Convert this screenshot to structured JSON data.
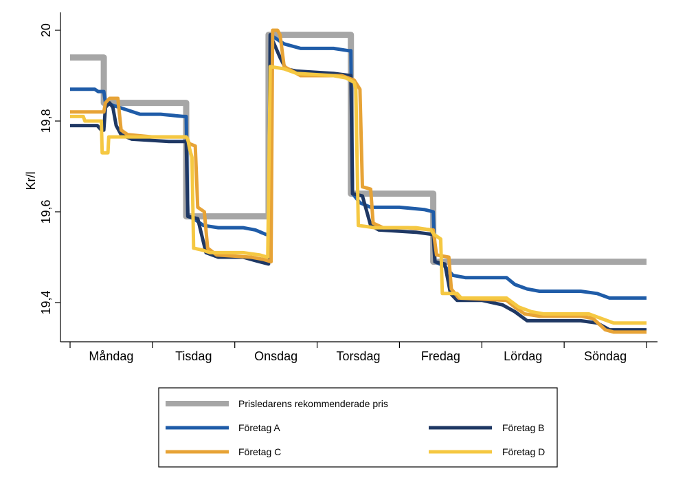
{
  "chart_data": {
    "type": "line",
    "title": "",
    "xlabel": "",
    "ylabel": "Kr/l",
    "ylim": [
      19.33,
      20.03
    ],
    "yticks": [
      19.4,
      19.6,
      19.8,
      20
    ],
    "ytick_labels": [
      "19,4",
      "19,6",
      "19,8",
      "20"
    ],
    "x_range": [
      0,
      7
    ],
    "categories": [
      "Måndag",
      "Tisdag",
      "Onsdag",
      "Torsdag",
      "Fredag",
      "Lördag",
      "Söndag"
    ],
    "grid": false,
    "legend_position": "bottom",
    "series": [
      {
        "name": "Prisledarens rekommenderade pris",
        "color": "#a6a6a6",
        "points": [
          [
            0,
            19.94
          ],
          [
            0.41,
            19.94
          ],
          [
            0.41,
            19.84
          ],
          [
            1.41,
            19.84
          ],
          [
            1.41,
            19.59
          ],
          [
            2.41,
            19.59
          ],
          [
            2.41,
            19.99
          ],
          [
            3.41,
            19.99
          ],
          [
            3.41,
            19.64
          ],
          [
            4.41,
            19.64
          ],
          [
            4.41,
            19.49
          ],
          [
            7,
            19.49
          ]
        ]
      },
      {
        "name": "Företag A",
        "color": "#1f5ca8",
        "points": [
          [
            0,
            19.87
          ],
          [
            0.3,
            19.87
          ],
          [
            0.34,
            19.865
          ],
          [
            0.41,
            19.865
          ],
          [
            0.43,
            19.84
          ],
          [
            0.6,
            19.83
          ],
          [
            0.85,
            19.815
          ],
          [
            1.1,
            19.815
          ],
          [
            1.38,
            19.81
          ],
          [
            1.41,
            19.81
          ],
          [
            1.43,
            19.59
          ],
          [
            1.5,
            19.585
          ],
          [
            1.62,
            19.57
          ],
          [
            1.8,
            19.565
          ],
          [
            2.1,
            19.565
          ],
          [
            2.25,
            19.56
          ],
          [
            2.38,
            19.55
          ],
          [
            2.41,
            19.55
          ],
          [
            2.43,
            19.99
          ],
          [
            2.6,
            19.97
          ],
          [
            2.8,
            19.96
          ],
          [
            3.2,
            19.96
          ],
          [
            3.38,
            19.955
          ],
          [
            3.41,
            19.955
          ],
          [
            3.43,
            19.64
          ],
          [
            3.52,
            19.62
          ],
          [
            3.65,
            19.61
          ],
          [
            4.0,
            19.61
          ],
          [
            4.3,
            19.605
          ],
          [
            4.41,
            19.6
          ],
          [
            4.43,
            19.49
          ],
          [
            4.55,
            19.48
          ],
          [
            4.65,
            19.46
          ],
          [
            4.8,
            19.455
          ],
          [
            5.3,
            19.455
          ],
          [
            5.4,
            19.44
          ],
          [
            5.55,
            19.43
          ],
          [
            5.7,
            19.425
          ],
          [
            6.2,
            19.425
          ],
          [
            6.4,
            19.42
          ],
          [
            6.55,
            19.41
          ],
          [
            7,
            19.41
          ]
        ]
      },
      {
        "name": "Företag B",
        "color": "#1f3864",
        "points": [
          [
            0,
            19.79
          ],
          [
            0.33,
            19.79
          ],
          [
            0.38,
            19.78
          ],
          [
            0.41,
            19.78
          ],
          [
            0.43,
            19.83
          ],
          [
            0.48,
            19.84
          ],
          [
            0.52,
            19.83
          ],
          [
            0.56,
            19.79
          ],
          [
            0.62,
            19.77
          ],
          [
            0.75,
            19.76
          ],
          [
            1.2,
            19.755
          ],
          [
            1.41,
            19.755
          ],
          [
            1.43,
            19.59
          ],
          [
            1.55,
            19.585
          ],
          [
            1.65,
            19.51
          ],
          [
            1.8,
            19.5
          ],
          [
            2.1,
            19.5
          ],
          [
            2.3,
            19.49
          ],
          [
            2.41,
            19.485
          ],
          [
            2.43,
            19.99
          ],
          [
            2.55,
            19.94
          ],
          [
            2.62,
            19.915
          ],
          [
            2.75,
            19.91
          ],
          [
            3.2,
            19.905
          ],
          [
            3.41,
            19.9
          ],
          [
            3.43,
            19.64
          ],
          [
            3.55,
            19.635
          ],
          [
            3.65,
            19.57
          ],
          [
            3.75,
            19.56
          ],
          [
            4.2,
            19.555
          ],
          [
            4.41,
            19.55
          ],
          [
            4.43,
            19.49
          ],
          [
            4.55,
            19.485
          ],
          [
            4.62,
            19.42
          ],
          [
            4.7,
            19.405
          ],
          [
            5.0,
            19.405
          ],
          [
            5.25,
            19.395
          ],
          [
            5.4,
            19.38
          ],
          [
            5.55,
            19.36
          ],
          [
            6.2,
            19.36
          ],
          [
            6.4,
            19.355
          ],
          [
            6.55,
            19.34
          ],
          [
            7,
            19.34
          ]
        ]
      },
      {
        "name": "Företag C",
        "color": "#e7a336",
        "points": [
          [
            0,
            19.82
          ],
          [
            0.41,
            19.82
          ],
          [
            0.43,
            19.84
          ],
          [
            0.48,
            19.85
          ],
          [
            0.58,
            19.85
          ],
          [
            0.62,
            19.78
          ],
          [
            0.7,
            19.77
          ],
          [
            1.0,
            19.765
          ],
          [
            1.41,
            19.765
          ],
          [
            1.45,
            19.75
          ],
          [
            1.52,
            19.745
          ],
          [
            1.55,
            19.61
          ],
          [
            1.63,
            19.6
          ],
          [
            1.67,
            19.52
          ],
          [
            1.78,
            19.505
          ],
          [
            2.2,
            19.5
          ],
          [
            2.35,
            19.495
          ],
          [
            2.44,
            19.49
          ],
          [
            2.46,
            20.0
          ],
          [
            2.52,
            20.0
          ],
          [
            2.55,
            19.99
          ],
          [
            2.6,
            19.92
          ],
          [
            2.7,
            19.91
          ],
          [
            2.8,
            19.9
          ],
          [
            3.3,
            19.9
          ],
          [
            3.45,
            19.89
          ],
          [
            3.52,
            19.87
          ],
          [
            3.55,
            19.655
          ],
          [
            3.65,
            19.65
          ],
          [
            3.68,
            19.575
          ],
          [
            3.8,
            19.565
          ],
          [
            4.1,
            19.565
          ],
          [
            4.41,
            19.56
          ],
          [
            4.45,
            19.505
          ],
          [
            4.6,
            19.5
          ],
          [
            4.63,
            19.43
          ],
          [
            4.72,
            19.41
          ],
          [
            5.3,
            19.405
          ],
          [
            5.4,
            19.39
          ],
          [
            5.52,
            19.375
          ],
          [
            5.7,
            19.37
          ],
          [
            6.2,
            19.37
          ],
          [
            6.35,
            19.365
          ],
          [
            6.5,
            19.34
          ],
          [
            6.6,
            19.335
          ],
          [
            7,
            19.335
          ]
        ]
      },
      {
        "name": "Företag D",
        "color": "#f5c842",
        "points": [
          [
            0,
            19.81
          ],
          [
            0.16,
            19.81
          ],
          [
            0.18,
            19.8
          ],
          [
            0.38,
            19.8
          ],
          [
            0.39,
            19.73
          ],
          [
            0.46,
            19.73
          ],
          [
            0.47,
            19.765
          ],
          [
            0.8,
            19.765
          ],
          [
            1.41,
            19.765
          ],
          [
            1.43,
            19.76
          ],
          [
            1.45,
            19.74
          ],
          [
            1.48,
            19.72
          ],
          [
            1.5,
            19.52
          ],
          [
            1.62,
            19.515
          ],
          [
            1.7,
            19.51
          ],
          [
            2.1,
            19.51
          ],
          [
            2.3,
            19.505
          ],
          [
            2.4,
            19.5
          ],
          [
            2.43,
            19.92
          ],
          [
            2.6,
            19.915
          ],
          [
            2.75,
            19.905
          ],
          [
            3.2,
            19.9
          ],
          [
            3.35,
            19.895
          ],
          [
            3.45,
            19.885
          ],
          [
            3.47,
            19.87
          ],
          [
            3.5,
            19.57
          ],
          [
            3.7,
            19.565
          ],
          [
            4.2,
            19.565
          ],
          [
            4.38,
            19.56
          ],
          [
            4.42,
            19.55
          ],
          [
            4.5,
            19.54
          ],
          [
            4.52,
            19.42
          ],
          [
            4.7,
            19.42
          ],
          [
            4.75,
            19.41
          ],
          [
            5.3,
            19.41
          ],
          [
            5.45,
            19.39
          ],
          [
            5.6,
            19.38
          ],
          [
            5.75,
            19.375
          ],
          [
            6.3,
            19.375
          ],
          [
            6.45,
            19.365
          ],
          [
            6.6,
            19.355
          ],
          [
            7,
            19.355
          ]
        ]
      }
    ]
  }
}
